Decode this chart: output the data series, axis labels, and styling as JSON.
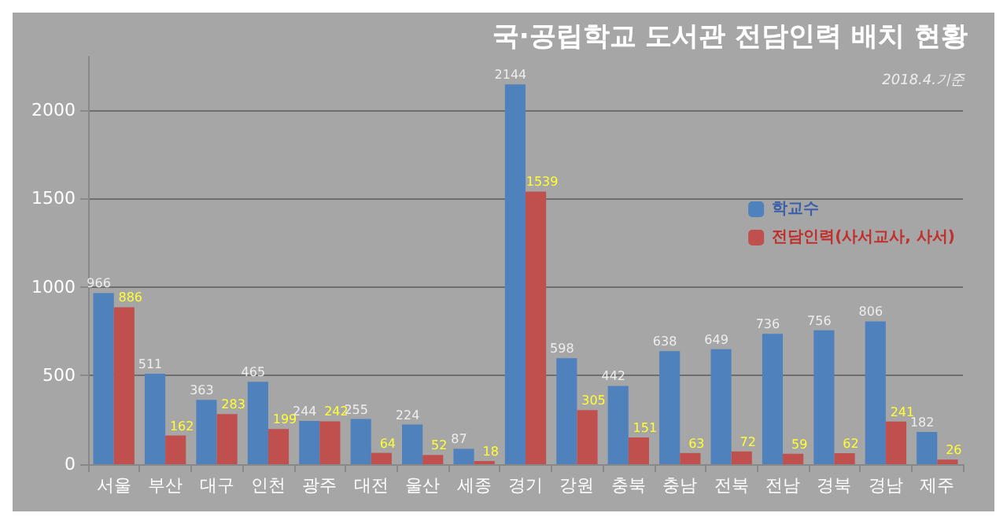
{
  "chart_data": {
    "type": "bar",
    "title": "국·공립학교 도서관 전담인력 배치 현황",
    "subtitle": "2018.4.기준",
    "categories": [
      "서울",
      "부산",
      "대구",
      "인천",
      "광주",
      "대전",
      "울산",
      "세종",
      "경기",
      "강원",
      "충북",
      "충남",
      "전북",
      "전남",
      "경북",
      "경남",
      "제주"
    ],
    "series": [
      {
        "name": "학교수",
        "color": "#4f81bd",
        "values": [
          966,
          511,
          363,
          465,
          244,
          255,
          224,
          87,
          2144,
          598,
          442,
          638,
          649,
          736,
          756,
          806,
          182
        ]
      },
      {
        "name": "전담인력(사서교사, 사서)",
        "color": "#c0504d",
        "values": [
          886,
          162,
          283,
          199,
          242,
          64,
          52,
          18,
          1539,
          305,
          151,
          63,
          72,
          59,
          62,
          241,
          26
        ]
      }
    ],
    "ylim": [
      0,
      2300
    ],
    "yticks": [
      0,
      500,
      1000,
      1500,
      2000
    ],
    "grid": "y",
    "legend": "right",
    "data_labels": true
  }
}
